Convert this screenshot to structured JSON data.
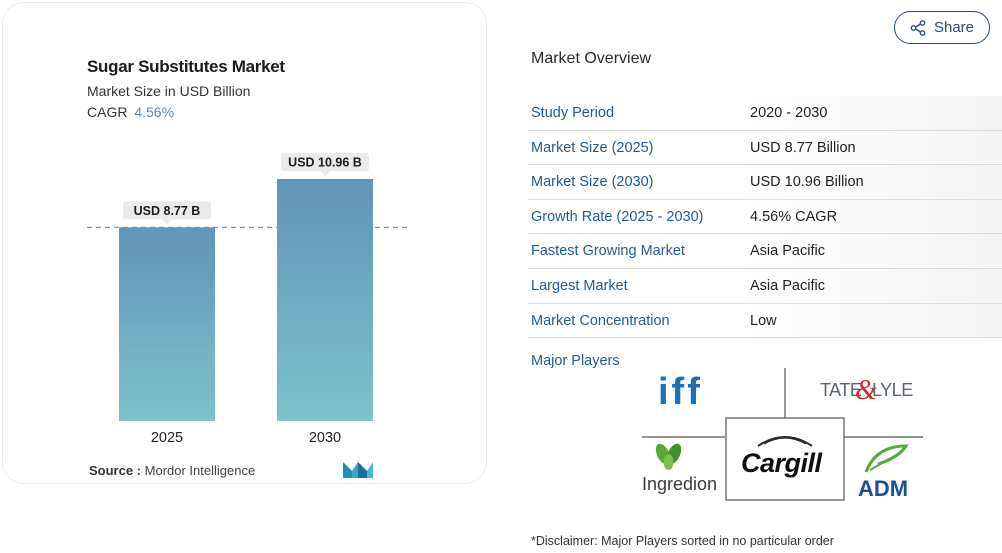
{
  "card": {
    "title": "Sugar Substitutes Market",
    "subtitle": "Market Size in USD Billion",
    "cagr_label": "CAGR",
    "cagr_value": "4.56%",
    "source_label": "Source :",
    "source_value": "Mordor Intelligence",
    "logo_icon": "mordor-intelligence-logo-icon"
  },
  "chart_data": {
    "type": "bar",
    "categories": [
      "2025",
      "2030"
    ],
    "values": [
      8.77,
      10.96
    ],
    "data_labels": [
      "USD 8.77 B",
      "USD 10.96 B"
    ],
    "reference_line": 8.77,
    "ylim": [
      0,
      10.96
    ],
    "colors": {
      "bar_top": "#6294b8",
      "bar_bottom": "#7ec2cc",
      "label_bg": "#eaeaea",
      "reference_line": "#6f9fc4"
    }
  },
  "share": {
    "label": "Share",
    "icon": "share-icon"
  },
  "overview": {
    "title": "Market Overview",
    "rows": [
      {
        "label": "Study Period",
        "value": "2020 - 2030"
      },
      {
        "label": "Market Size (2025)",
        "value": "USD 8.77 Billion"
      },
      {
        "label": "Market Size (2030)",
        "value": "USD 10.96 Billion"
      },
      {
        "label": "Growth Rate (2025 - 2030)",
        "value": "4.56% CAGR"
      },
      {
        "label": "Fastest Growing Market",
        "value": "Asia Pacific"
      },
      {
        "label": "Largest Market",
        "value": "Asia Pacific"
      },
      {
        "label": "Market Concentration",
        "value": "Low"
      }
    ]
  },
  "players": {
    "label": "Major Players",
    "logos": {
      "iff": "iff",
      "tate_lyle_left": "TATE",
      "tate_lyle_amp": "&",
      "tate_lyle_right": "LYLE",
      "ingredion": "Ingredion",
      "cargill": "Cargill",
      "adm": "ADM"
    }
  },
  "disclaimer": "*Disclaimer: Major Players sorted in no particular order",
  "colors": {
    "link_blue": "#1f5b96",
    "accent": "#2c4c7a"
  }
}
